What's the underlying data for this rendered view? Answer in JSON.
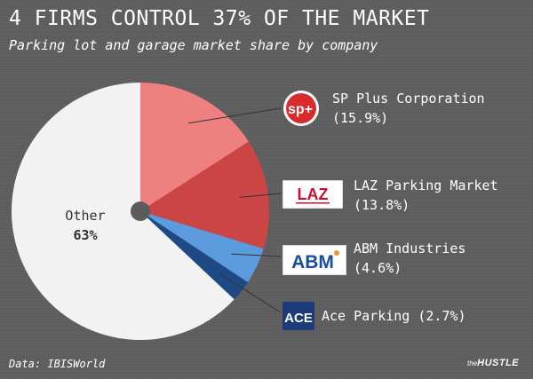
{
  "title": "4 FIRMS CONTROL 37% OF THE MARKET",
  "subtitle": "Parking lot and garage market share by company",
  "source": "Data: IBISWorld",
  "brand": {
    "prefix": "the",
    "name": "HUSTLE"
  },
  "chart_data": {
    "type": "pie",
    "unit": "%",
    "slices": [
      {
        "label": "SP Plus Corporation",
        "value": 15.9,
        "value_text": "(15.9%)",
        "color": "#ef8080",
        "logo": "sp+"
      },
      {
        "label": "LAZ Parking Market",
        "value": 13.8,
        "value_text": "(13.8%)",
        "color": "#cc4545",
        "logo": "LAZ"
      },
      {
        "label": "ABM Industries",
        "value": 4.6,
        "value_text": "(4.6%)",
        "color": "#5b9bde",
        "logo": "ABM"
      },
      {
        "label": "Ace Parking",
        "value": 2.7,
        "value_text": "(2.7%)",
        "color": "#1d4a85",
        "logo": "ACE"
      },
      {
        "label": "Other",
        "value": 63,
        "value_text": "63%",
        "color": "#f2f2f2"
      }
    ]
  },
  "logo_colors": {
    "sp_red": "#d92b2b",
    "sp_orange": "#f29422",
    "laz_red": "#c8102e",
    "abm_blue": "#1a4e9c",
    "ace_navy": "#1d3b7a"
  }
}
